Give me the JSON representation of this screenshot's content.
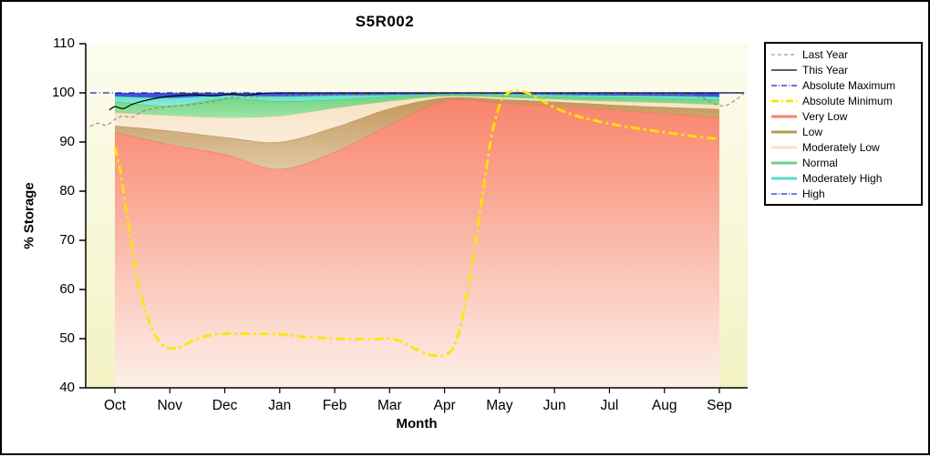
{
  "chart_data": {
    "type": "area",
    "title": "S5R002",
    "xlabel": "Month",
    "ylabel": "% Storage",
    "ylim": [
      40,
      110
    ],
    "y_ticks": [
      40,
      50,
      60,
      70,
      80,
      90,
      100,
      110
    ],
    "categories": [
      "Oct",
      "Nov",
      "Dec",
      "Jan",
      "Feb",
      "Mar",
      "Apr",
      "May",
      "Jun",
      "Jul",
      "Aug",
      "Sep"
    ],
    "plot_bg_top": "#FCFCEF",
    "plot_bg_bottom": "#F3F3C5",
    "bands": [
      {
        "name": "Very Low",
        "fill": "#F9846C",
        "fill2": "#FCF0E9",
        "edge": "#ED7258",
        "values": [
          92,
          89.5,
          87.5,
          84.5,
          88,
          93.5,
          98.3,
          98,
          97.3,
          96.6,
          95.8,
          95
        ]
      },
      {
        "name": "Low",
        "fill": "#C39659",
        "fill2": "#DFC8A4",
        "edge": "#AE8A52",
        "values": [
          93.3,
          92.3,
          91,
          90,
          93,
          96.8,
          99,
          98.7,
          98.2,
          97.6,
          97.1,
          96.7
        ]
      },
      {
        "name": "Moderately Low",
        "fill": "#F7E2C2",
        "fill2": "#FAEDDA",
        "edge": "#E9CD9E",
        "values": [
          96,
          95.4,
          95,
          95.3,
          96.9,
          98.3,
          99.3,
          99.1,
          98.7,
          98.3,
          98,
          97.6
        ]
      },
      {
        "name": "Normal",
        "fill": "#6ED47E",
        "fill2": "#9CE4A8",
        "edge": "#4FBE63",
        "values": [
          98.2,
          97.4,
          98.8,
          98.3,
          98.6,
          99.2,
          99.6,
          99.5,
          99.2,
          99.1,
          98.9,
          98.6
        ]
      },
      {
        "name": "Moderately High",
        "fill": "#58DEC6",
        "fill2": "#8FEBD9",
        "edge": "#38C9AE",
        "values": [
          99.3,
          99,
          99.5,
          99.3,
          99.5,
          99.6,
          99.8,
          99.8,
          99.6,
          99.5,
          99.4,
          99.2
        ]
      },
      {
        "name": "High",
        "fill": "#3C55D6",
        "fill2": "#3C55D6",
        "edge": "#2A41C4",
        "values": [
          99.9,
          99.9,
          99.9,
          99.9,
          99.9,
          99.9,
          99.9,
          99.9,
          99.9,
          99.9,
          99.9,
          99.9
        ]
      }
    ],
    "lines": [
      {
        "name": "Last Year",
        "color": "#9A7D5A",
        "width": 1,
        "dash": "4 3",
        "x": [
          -0.45,
          -0.3,
          -0.15,
          0,
          0.15,
          0.3,
          0.5,
          0.7,
          0.9,
          1.1,
          1.4,
          1.8,
          2.1,
          2.5,
          3,
          3.5,
          4,
          4.5,
          5,
          5.5,
          6,
          6.5,
          7,
          7.5,
          8,
          8.5,
          9,
          9.5,
          10,
          10.4,
          10.7,
          10.9,
          11.1,
          11.3,
          11.45
        ],
        "y": [
          93.2,
          93.8,
          93.4,
          94.6,
          95.3,
          95,
          96.2,
          96.8,
          97.1,
          97.3,
          97.6,
          98.3,
          99,
          99.2,
          99.4,
          99.5,
          99.6,
          99.6,
          99.7,
          99.7,
          99.75,
          99.8,
          99.8,
          99.8,
          99.8,
          99.8,
          99.8,
          99.8,
          99.75,
          99.6,
          99,
          97.8,
          97.4,
          98.6,
          99.9
        ]
      },
      {
        "name": "This Year",
        "color": "#000000",
        "width": 1.2,
        "dash": "",
        "x": [
          -0.1,
          0,
          0.15,
          0.3,
          0.5,
          0.7,
          1,
          1.4,
          1.8,
          2.1,
          2.4,
          2.7,
          3,
          3.5,
          4,
          5,
          6,
          7,
          8,
          9,
          10,
          11,
          11.45
        ],
        "y": [
          96.5,
          97.2,
          96.8,
          97.6,
          98.3,
          98.8,
          99.3,
          99.6,
          99.4,
          99.7,
          99.5,
          99.9,
          100,
          100,
          100,
          100,
          100,
          100,
          100,
          100,
          100,
          100,
          100
        ]
      },
      {
        "name": "Absolute Maximum",
        "color": "#1F1FC8",
        "width": 1.2,
        "dash": "7 3 1 3",
        "x": [
          -0.45,
          11.45
        ],
        "y": [
          100,
          100
        ]
      },
      {
        "name": "Absolute Minimum",
        "color": "#FFE400",
        "width": 2.8,
        "dash": "10 4 3 4",
        "x": [
          0,
          0.1,
          0.25,
          0.45,
          0.7,
          0.9,
          1.05,
          1.2,
          1.5,
          1.8,
          2,
          2.3,
          2.7,
          3,
          3.3,
          3.7,
          4,
          4.3,
          4.7,
          5,
          5.2,
          5.45,
          5.7,
          5.85,
          6,
          6.15,
          6.3,
          6.5,
          6.7,
          6.85,
          7,
          7.1,
          7.25,
          7.45,
          7.7,
          8,
          8.4,
          8.8,
          9.2,
          9.6,
          10,
          10.5,
          11
        ],
        "y": [
          89,
          84,
          73,
          60,
          51.5,
          48.5,
          48,
          48.3,
          50,
          50.8,
          51,
          51,
          51,
          50.9,
          50.5,
          50.2,
          50,
          49.9,
          49.9,
          50,
          49.5,
          48,
          46.8,
          46.5,
          46.7,
          48,
          53,
          65,
          80,
          91,
          97.5,
          99.5,
          100.4,
          100.2,
          98.9,
          97,
          95.3,
          94.2,
          93.3,
          92.6,
          92,
          91.2,
          90.6
        ]
      }
    ],
    "legend": [
      {
        "label": "Last Year",
        "color": "#9A7D5A",
        "width": 1,
        "dash": "4 3"
      },
      {
        "label": "This Year",
        "color": "#000000",
        "width": 1.2,
        "dash": ""
      },
      {
        "label": "Absolute Maximum",
        "color": "#1F1FC8",
        "width": 1.2,
        "dash": "6 2 1 2"
      },
      {
        "label": "Absolute Minimum",
        "color": "#FFE400",
        "width": 2.8,
        "dash": "8 3 2 3"
      },
      {
        "label": "Very Low",
        "color": "#F9846C",
        "width": 3,
        "dash": ""
      },
      {
        "label": "Low",
        "color": "#C39659",
        "width": 3,
        "dash": ""
      },
      {
        "label": "Moderately Low",
        "color": "#F7E2C2",
        "width": 3,
        "dash": ""
      },
      {
        "label": "Normal",
        "color": "#6ED47E",
        "width": 3,
        "dash": ""
      },
      {
        "label": "Moderately High",
        "color": "#58DEC6",
        "width": 3,
        "dash": ""
      },
      {
        "label": "High",
        "color": "#3C55D6",
        "width": 1.4,
        "dash": "6 2 1 2"
      }
    ]
  }
}
